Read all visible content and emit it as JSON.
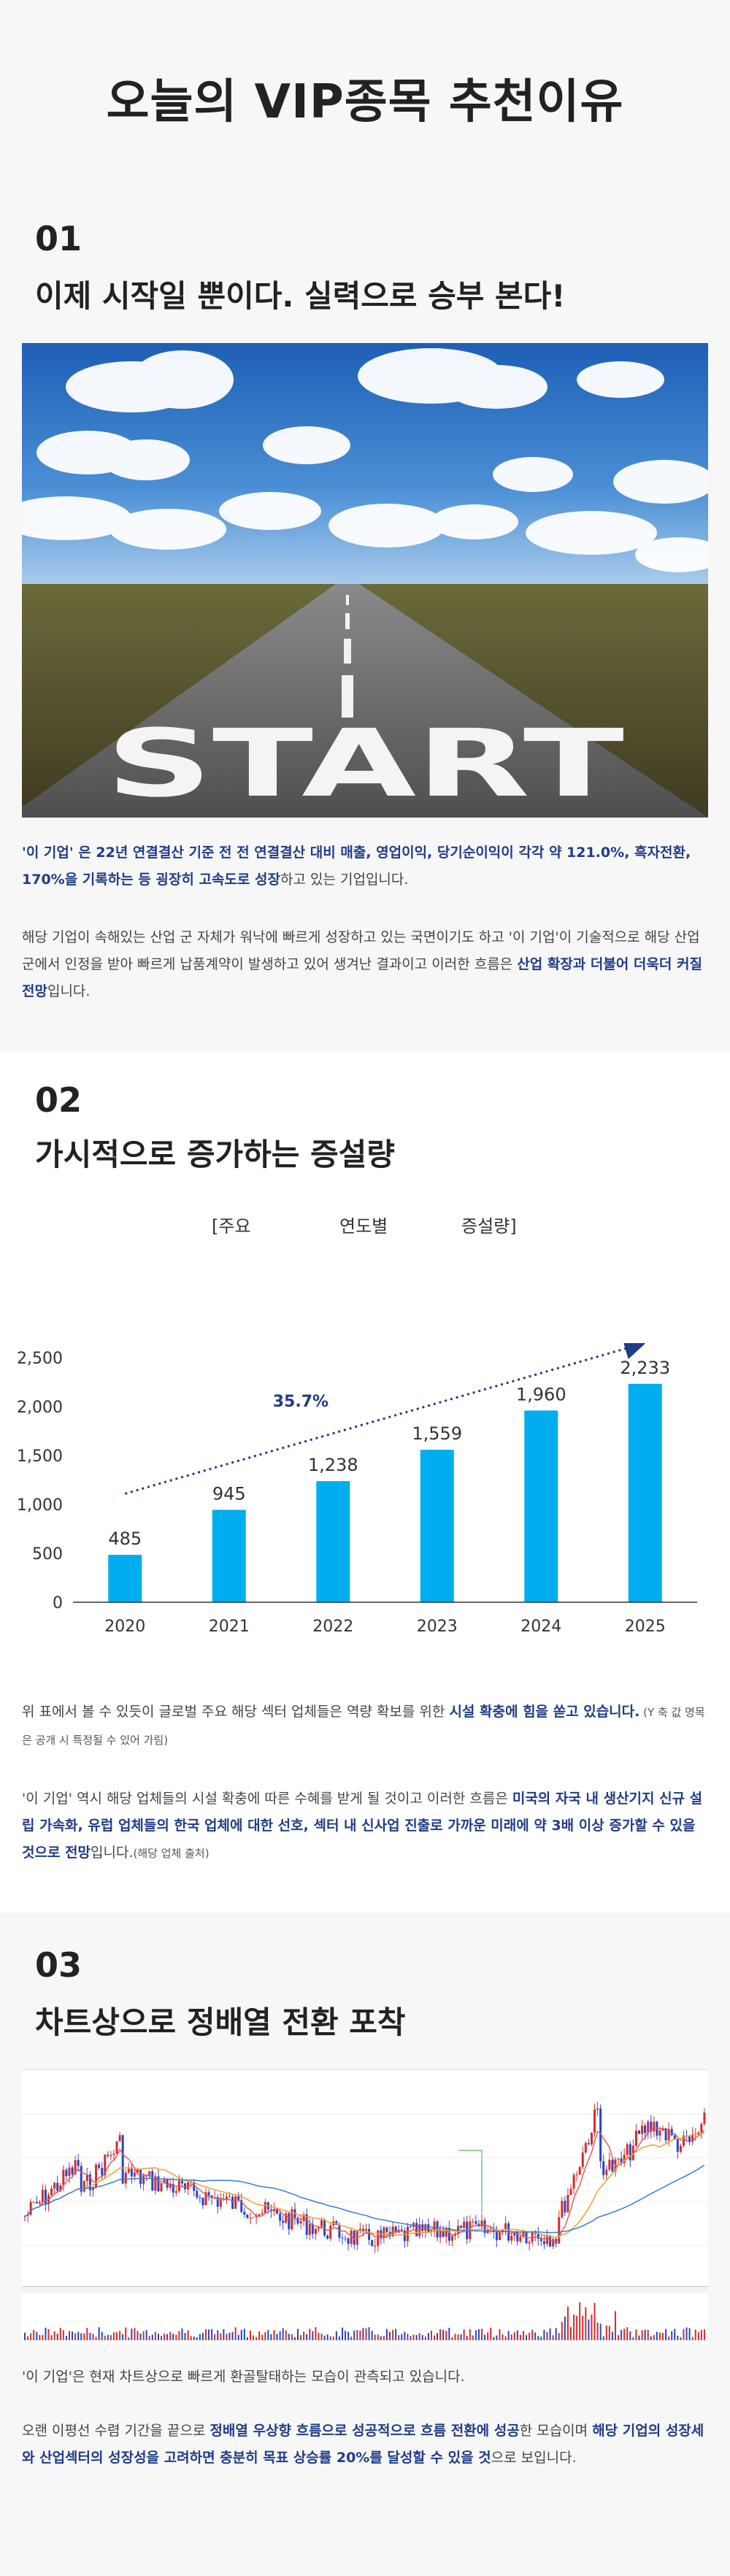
{
  "header": {
    "title": "오늘의 VIP종목 추천이유"
  },
  "section1": {
    "num": "01",
    "title": "이제 시작일 뿐이다. 실력으로 승부 본다!",
    "image_text": "START",
    "p1_hl1": "'이 기업' 은 22년 연결결산 기준 전 전 연결결산 대비 매출, 영업이익, 당기순이익이 각각 약 121.0%, 흑자전환, 170%을 기록하는 등 굉장히 고속도로 성장",
    "p1_rest": "하고 있는 기업입니다.",
    "p2_a": "해당 기업이 속해있는 산업 군 자체가 워낙에 빠르게 성장하고 있는 국면이기도 하고 '이 기업'이 기술적으로 해당 산업 군에서 인정을 받아 빠르게 납품계약이 발생하고 있어 생겨난 결과이고 이러한 흐름은 ",
    "p2_hl": "산업 확장과 더불어 더욱더 커질 전망",
    "p2_end": "입니다."
  },
  "section2": {
    "num": "02",
    "title": "가시적으로 증가하는 증설량",
    "chart_head": [
      "[주요",
      "연도별",
      "증설량]"
    ],
    "p1_a": "위 표에서 볼 수 있듯이 글로벌 주요 해당 섹터 업체들은 역량 확보를 위한 ",
    "p1_hl": "시설 확충에 힘을 쏟고 있습니다.",
    "p1_small": " (Y 축 값 명목은 공개 시 특정될 수 있어 가림)",
    "p2_a": "'이 기업' 역시 해당 업체들의 시설 확충에 따른 수혜를 받게 될 것이고 이러한 흐름은 ",
    "p2_hl": "미국의 자국 내 생산기지 신규 설립 가속화, 유럽 업체들의 한국 업체에 대한 선호, 섹터 내 신사업 진출로 가까운 미래에 약 3배 이상 증가할 수 있을 것으로 전망",
    "p2_end": "입니다.",
    "p2_small": "(해당 업체 출처)"
  },
  "section3": {
    "num": "03",
    "title": "차트상으로 정배열 전환 포착",
    "p1": "'이 기업'은 현재 차트상으로 빠르게 환골탈태하는 모습이 관측되고 있습니다.",
    "p2_a": "오랜 이평선 수렴 기간을 끝으로 ",
    "p2_hl1": "정배열 우상향 흐름으로 성공적으로 흐름 전환에 성공",
    "p2_b": "한 모습이며 ",
    "p2_hl2": "해당 기업의 성장세와 산업섹터의 성장성을 고려하면 충분히 목표 상승률 20%를 달성할 수 있을 것",
    "p2_end": "으로 보입니다."
  },
  "colors": {
    "bar": "#00aeef",
    "arrow": "#1f3c88",
    "highlight": "#1f3c88"
  },
  "chart_data": {
    "type": "bar",
    "categories": [
      "2020",
      "2021",
      "2022",
      "2023",
      "2024",
      "2025"
    ],
    "values": [
      485,
      945,
      1238,
      1559,
      1960,
      2233
    ],
    "value_labels": [
      "485",
      "945",
      "1,238",
      "1,559",
      "1,960",
      "2,233"
    ],
    "yticks": [
      "0",
      "500",
      "1,000",
      "1,500",
      "2,000",
      "2,500"
    ],
    "ylim": [
      0,
      2500
    ],
    "annotation": "35.7%",
    "grid": false
  }
}
